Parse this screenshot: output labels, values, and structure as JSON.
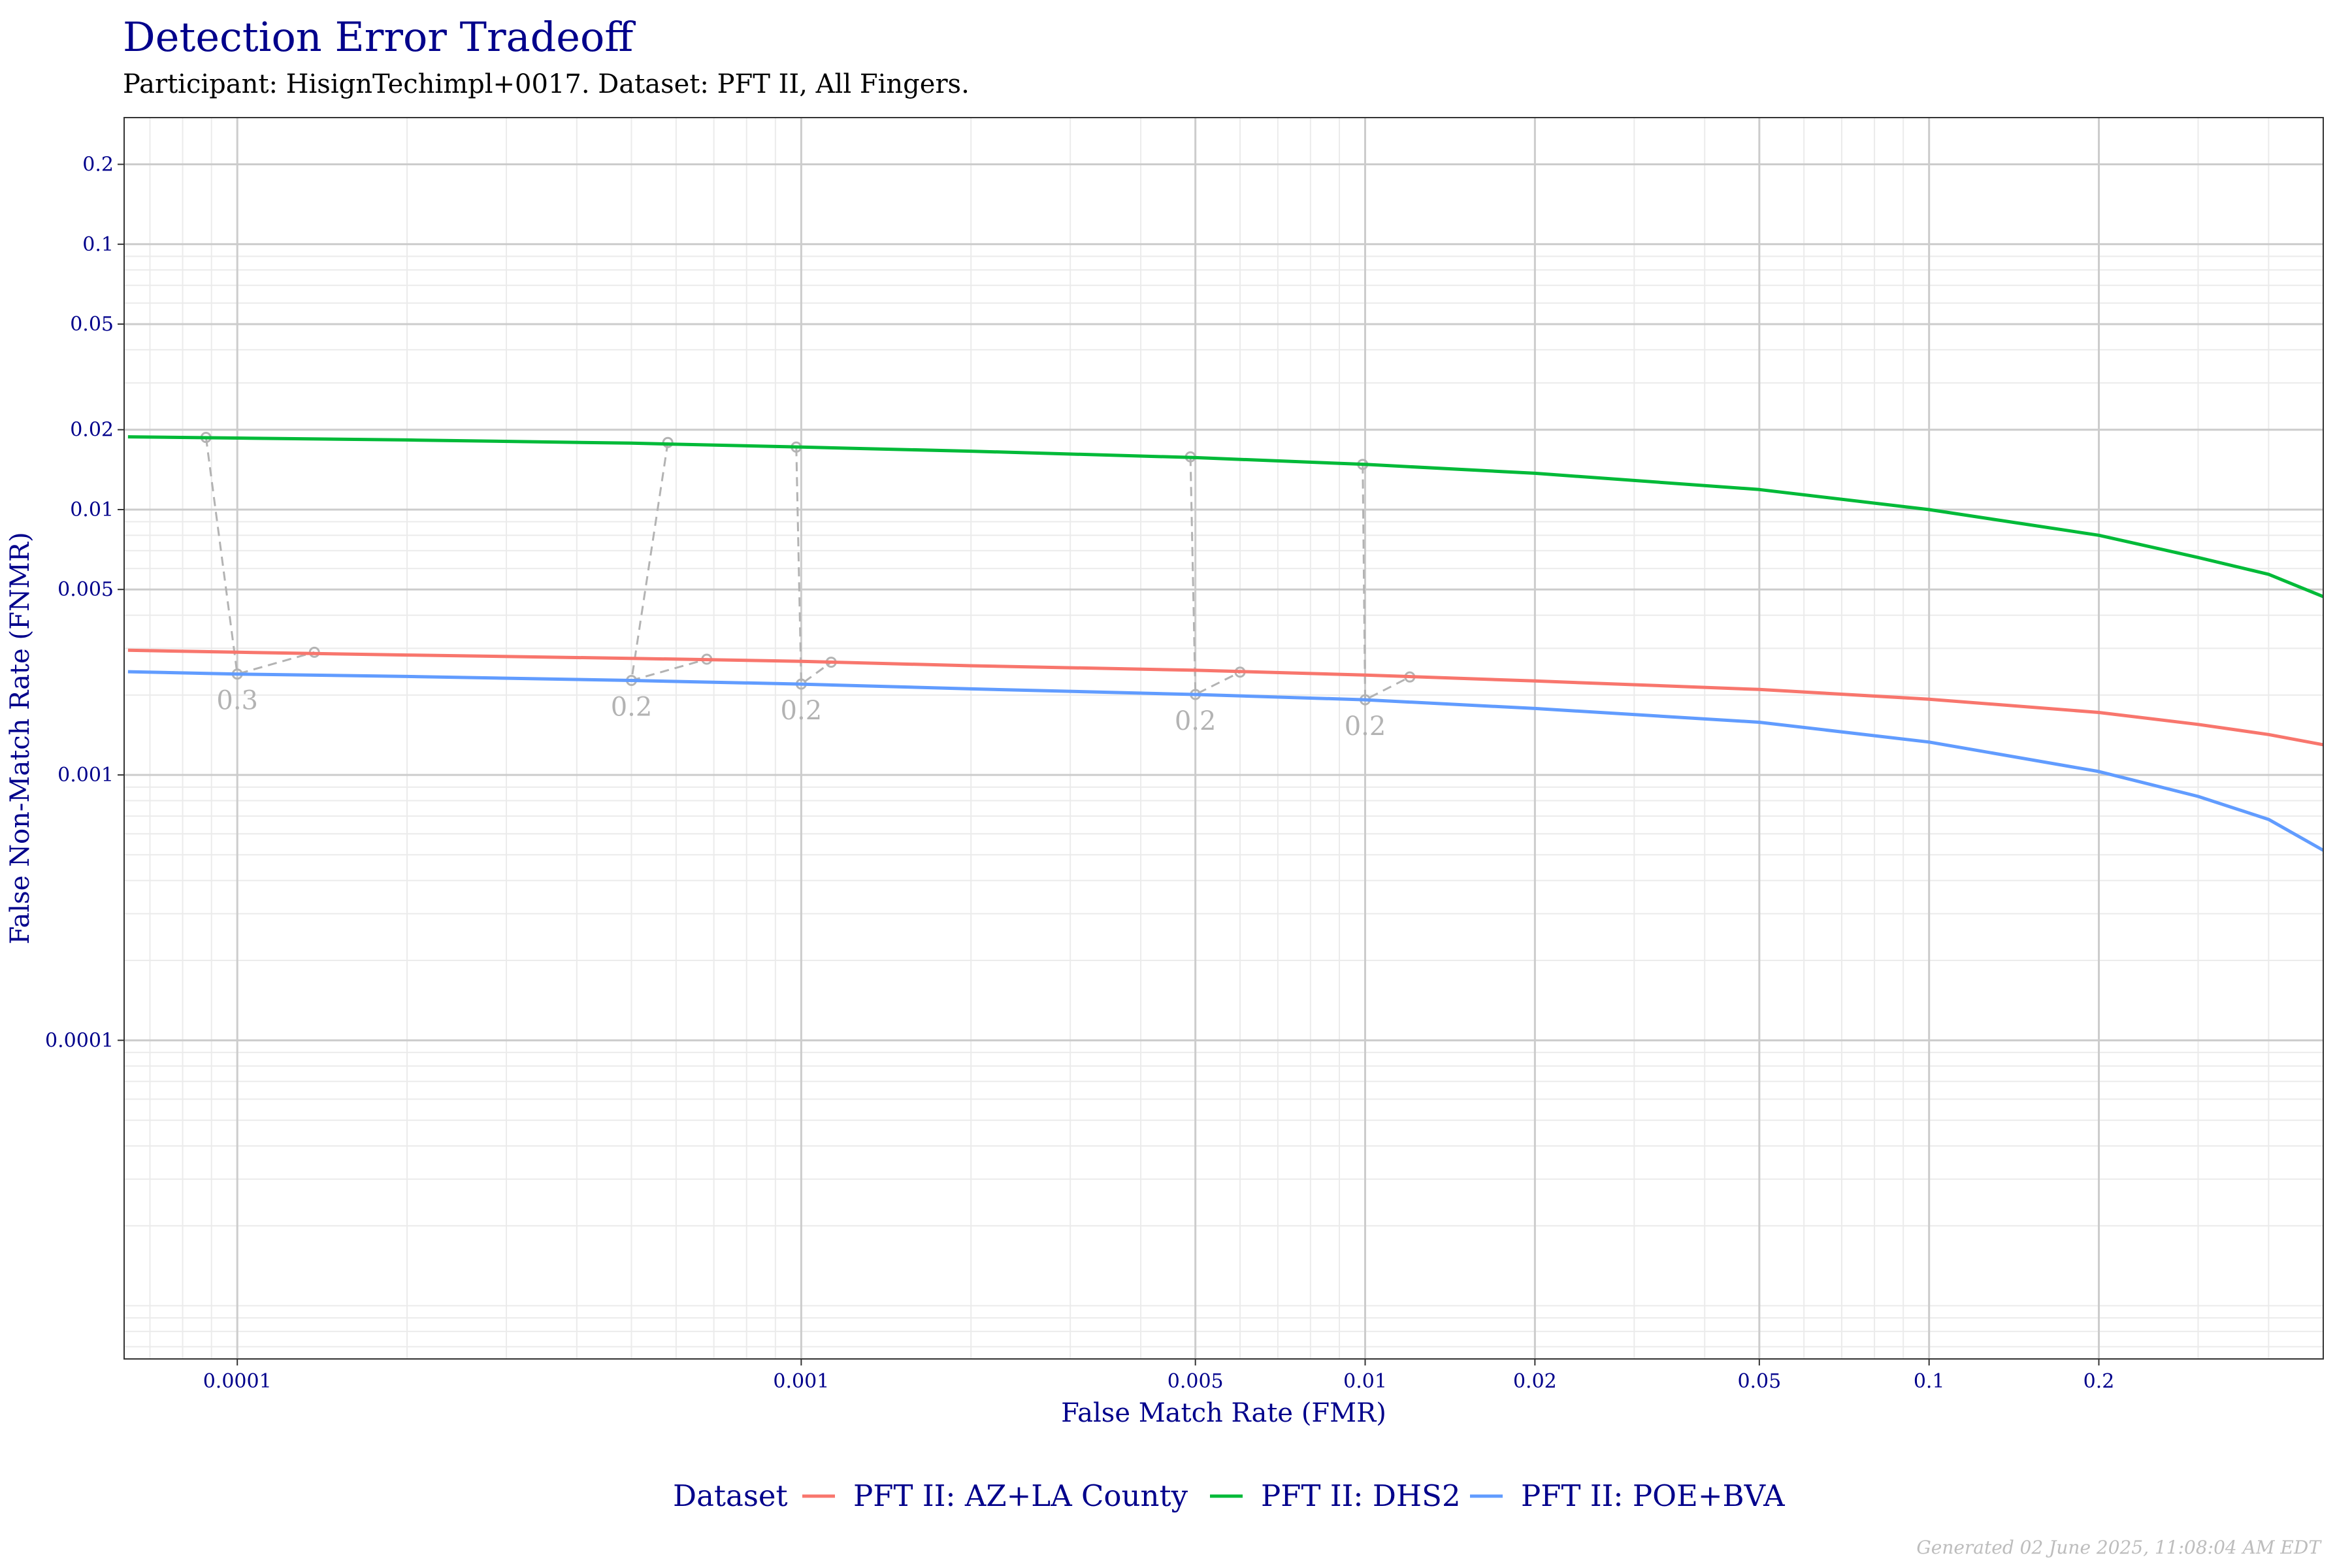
{
  "title": "Detection Error Tradeoff",
  "subtitle": "Participant: HisignTechimpl+0017. Dataset: PFT II, All Fingers.",
  "footer": "Generated 02 June 2025, 11:08:04 AM EDT",
  "chart_data": {
    "type": "line",
    "title": "Detection Error Tradeoff",
    "subtitle": "Participant: HisignTechimpl+0017. Dataset: PFT II, All Fingers.",
    "xlabel": "False Match Rate (FMR)",
    "ylabel": "False Non-Match Rate (FNMR)",
    "x_scale": "log",
    "y_scale": "log",
    "xlim": [
      6.3e-05,
      0.5
    ],
    "ylim": [
      6.3e-06,
      0.3
    ],
    "x_ticks": [
      0.0001,
      0.001,
      0.005,
      0.01,
      0.02,
      0.05,
      0.1,
      0.2
    ],
    "x_tick_labels": [
      "0.0001",
      "0.001",
      "0.005",
      "0.01",
      "0.02",
      "0.05",
      "0.1",
      "0.2"
    ],
    "y_ticks": [
      0.0001,
      0.001,
      0.005,
      0.01,
      0.02,
      0.05,
      0.1,
      0.2
    ],
    "y_tick_labels": [
      "0.0001",
      "0.001",
      "0.005",
      "0.01",
      "0.02",
      "0.05",
      "0.1",
      "0.2"
    ],
    "grid": true,
    "legend": {
      "title": "Dataset",
      "position": "bottom"
    },
    "series": [
      {
        "name": "PFT II: AZ+LA County",
        "color": "#f8766d",
        "x": [
          6.4e-05,
          0.0001,
          0.0002,
          0.0005,
          0.001,
          0.002,
          0.005,
          0.01,
          0.02,
          0.05,
          0.1,
          0.2,
          0.3,
          0.4,
          0.5
        ],
        "y": [
          0.00295,
          0.0029,
          0.00283,
          0.00275,
          0.00268,
          0.00258,
          0.00248,
          0.00238,
          0.00226,
          0.0021,
          0.00193,
          0.00172,
          0.00155,
          0.00142,
          0.0013
        ]
      },
      {
        "name": "PFT II: DHS2",
        "color": "#00ba38",
        "x": [
          6.4e-05,
          0.0001,
          0.0002,
          0.0005,
          0.001,
          0.002,
          0.005,
          0.01,
          0.02,
          0.05,
          0.1,
          0.2,
          0.3,
          0.4,
          0.5
        ],
        "y": [
          0.0188,
          0.0186,
          0.0183,
          0.0178,
          0.0172,
          0.0166,
          0.0157,
          0.0148,
          0.0137,
          0.0119,
          0.01,
          0.008,
          0.0066,
          0.0057,
          0.0047
        ]
      },
      {
        "name": "PFT II: POE+BVA",
        "color": "#619cff",
        "x": [
          6.4e-05,
          0.0001,
          0.0002,
          0.0005,
          0.001,
          0.002,
          0.005,
          0.01,
          0.02,
          0.05,
          0.1,
          0.2,
          0.3,
          0.4,
          0.5
        ],
        "y": [
          0.00245,
          0.0024,
          0.00235,
          0.00227,
          0.0022,
          0.00211,
          0.00201,
          0.00192,
          0.00178,
          0.00158,
          0.00133,
          0.00103,
          0.00083,
          0.00068,
          0.00052
        ]
      }
    ],
    "thresholds": [
      {
        "label": "0.3",
        "x": [
          8.8e-05,
          0.0001,
          0.000137
        ],
        "y": [
          0.0187,
          0.0024,
          0.0029
        ]
      },
      {
        "label": "0.2",
        "x": [
          0.00058,
          0.0005,
          0.00068
        ],
        "y": [
          0.0179,
          0.00227,
          0.00273
        ]
      },
      {
        "label": "0.2",
        "x": [
          0.00098,
          0.001,
          0.00113
        ],
        "y": [
          0.0172,
          0.0022,
          0.00266
        ]
      },
      {
        "label": "0.2",
        "x": [
          0.0049,
          0.005,
          0.006
        ],
        "y": [
          0.0158,
          0.00201,
          0.00244
        ]
      },
      {
        "label": "0.2",
        "x": [
          0.0099,
          0.01,
          0.012
        ],
        "y": [
          0.0148,
          0.00192,
          0.00234
        ]
      }
    ]
  }
}
